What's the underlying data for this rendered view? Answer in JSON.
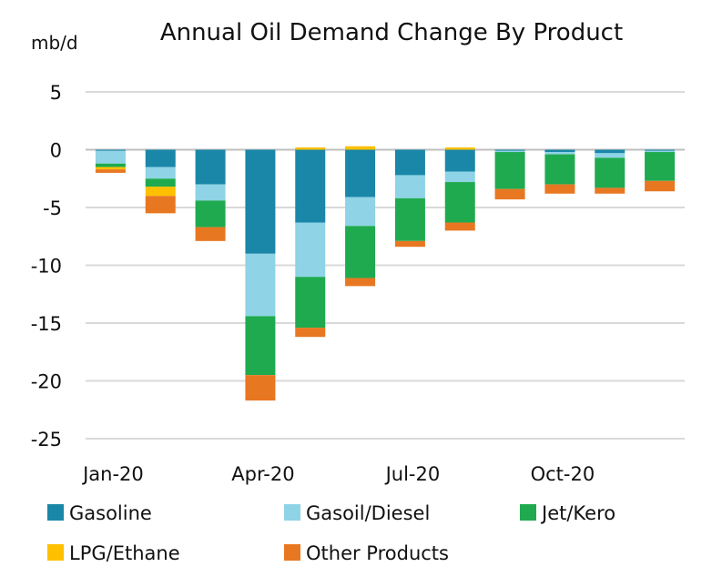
{
  "chart_data": {
    "type": "bar",
    "stacked": true,
    "title": "Annual Oil Demand Change By Product",
    "ylabel": "mb/d",
    "xlabel": "",
    "ylim": [
      -25,
      5
    ],
    "yticks": [
      5,
      0,
      -5,
      -10,
      -15,
      -20,
      -25
    ],
    "categories": [
      "Jan-20",
      "Feb-20",
      "Mar-20",
      "Apr-20",
      "May-20",
      "Jun-20",
      "Jul-20",
      "Aug-20",
      "Sep-20",
      "Oct-20",
      "Nov-20",
      "Dec-20"
    ],
    "xtick_labels": [
      {
        "index": 0,
        "label": "Jan-20"
      },
      {
        "index": 3,
        "label": "Apr-20"
      },
      {
        "index": 6,
        "label": "Jul-20"
      },
      {
        "index": 9,
        "label": "Oct-20"
      }
    ],
    "grid": true,
    "legend_position": "bottom",
    "series": [
      {
        "name": "Gasoline",
        "color": "#1a87a8",
        "values": [
          -0.1,
          -1.5,
          -3.0,
          -9.0,
          -6.3,
          -4.1,
          -2.2,
          -1.9,
          -0.1,
          -0.2,
          -0.3,
          -0.1
        ]
      },
      {
        "name": "Gasoil/Diesel",
        "color": "#8ed3e6",
        "values": [
          -1.1,
          -1.0,
          -1.4,
          -5.4,
          -4.7,
          -2.5,
          -2.0,
          -0.9,
          -0.1,
          -0.2,
          -0.4,
          -0.1
        ]
      },
      {
        "name": "Jet/Kero",
        "color": "#1faa4f",
        "values": [
          -0.3,
          -0.7,
          -2.3,
          -5.1,
          -4.4,
          -4.5,
          -3.7,
          -3.5,
          -3.2,
          -2.6,
          -2.6,
          -2.5
        ]
      },
      {
        "name": "LPG/Ethane",
        "color": "#ffc000",
        "values": [
          -0.2,
          -0.8,
          0.0,
          0.0,
          0.2,
          0.3,
          0.0,
          0.2,
          0.0,
          0.0,
          0.0,
          0.0
        ]
      },
      {
        "name": "Other Products",
        "color": "#e87722",
        "values": [
          -0.3,
          -1.5,
          -1.2,
          -2.2,
          -0.8,
          -0.7,
          -0.5,
          -0.7,
          -0.9,
          -0.8,
          -0.5,
          -0.9
        ]
      }
    ]
  }
}
